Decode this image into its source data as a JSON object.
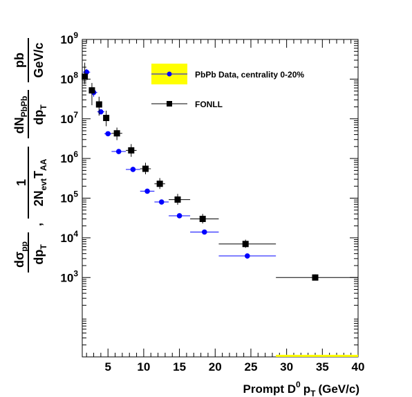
{
  "chart_data": {
    "type": "scatter",
    "xlabel": "Prompt D",
    "xlabel_sup": "0",
    "xlabel_var": "p",
    "xlabel_sub": "T",
    "xlabel_unit": "(GeV/c)",
    "x_scale": "linear",
    "y_scale": "log",
    "xlim": [
      1.4,
      40
    ],
    "ylim": [
      10,
      1000000000
    ],
    "x_ticks": [
      5,
      10,
      15,
      20,
      25,
      30,
      35,
      40
    ],
    "x_tick_labels": [
      "5",
      "10",
      "15",
      "20",
      "25",
      "30",
      "35",
      "40"
    ],
    "y_ticks": [
      1000,
      10000,
      100000,
      1000000,
      10000000,
      100000000,
      1000000000
    ],
    "y_tick_base": "10",
    "y_tick_exponents": [
      "3",
      "4",
      "5",
      "6",
      "7",
      "8",
      "9"
    ],
    "legend_position": "top-right",
    "series": [
      {
        "name": "PbPb Data, centrality 0-20%",
        "color": "#0000ff",
        "marker": "circle",
        "points": [
          {
            "x": 2.0,
            "xlo": 1.5,
            "xhi": 2.5,
            "y": 150000000,
            "ylo": 120000000,
            "yhi": 180000000
          },
          {
            "x": 3.0,
            "xlo": 2.5,
            "xhi": 3.5,
            "y": 46000000,
            "ylo": 36000000,
            "yhi": 56000000
          },
          {
            "x": 4.0,
            "xlo": 3.5,
            "xhi": 4.5,
            "y": 15000000,
            "ylo": 13000000,
            "yhi": 17000000
          },
          {
            "x": 5.0,
            "xlo": 4.5,
            "xhi": 5.5,
            "y": 4200000,
            "ylo": 3800000,
            "yhi": 4600000
          },
          {
            "x": 6.5,
            "xlo": 5.5,
            "xhi": 7.5,
            "y": 1500000,
            "ylo": 1400000,
            "yhi": 1600000
          },
          {
            "x": 8.5,
            "xlo": 7.5,
            "xhi": 9.5,
            "y": 530000,
            "ylo": 500000,
            "yhi": 560000
          },
          {
            "x": 10.5,
            "xlo": 9.5,
            "xhi": 11.5,
            "y": 150000,
            "ylo": 140000,
            "yhi": 160000
          },
          {
            "x": 12.5,
            "xlo": 11.5,
            "xhi": 13.5,
            "y": 80000,
            "ylo": 75000,
            "yhi": 85000
          },
          {
            "x": 15.0,
            "xlo": 13.5,
            "xhi": 16.5,
            "y": 36000,
            "ylo": 34000,
            "yhi": 38000
          },
          {
            "x": 18.5,
            "xlo": 16.5,
            "xhi": 20.5,
            "y": 14000,
            "ylo": 13000,
            "yhi": 15000
          },
          {
            "x": 24.5,
            "xlo": 20.5,
            "xhi": 28.5,
            "y": 3500,
            "ylo": 3000,
            "yhi": 4000
          }
        ]
      },
      {
        "name": "FONLL",
        "color": "#000000",
        "marker": "square",
        "points": [
          {
            "x": 1.75,
            "xlo": 1.5,
            "xhi": 2.0,
            "y": 115000000,
            "ylo": 75000000,
            "yhi": 260000000
          },
          {
            "x": 2.75,
            "xlo": 2.5,
            "xhi": 3.0,
            "y": 52000000,
            "ylo": 22000000,
            "yhi": 80000000
          },
          {
            "x": 3.75,
            "xlo": 3.5,
            "xhi": 4.0,
            "y": 23000000,
            "ylo": 12000000,
            "yhi": 36000000
          },
          {
            "x": 4.75,
            "xlo": 4.5,
            "xhi": 5.0,
            "y": 10500000,
            "ylo": 6500000,
            "yhi": 16000000
          },
          {
            "x": 6.25,
            "xlo": 5.5,
            "xhi": 7.0,
            "y": 4300000,
            "ylo": 2900000,
            "yhi": 6000000
          },
          {
            "x": 8.25,
            "xlo": 7.5,
            "xhi": 9.0,
            "y": 1600000,
            "ylo": 1100000,
            "yhi": 2300000
          },
          {
            "x": 10.25,
            "xlo": 9.5,
            "xhi": 11.0,
            "y": 550000,
            "ylo": 400000,
            "yhi": 780000
          },
          {
            "x": 12.25,
            "xlo": 11.5,
            "xhi": 13.0,
            "y": 230000,
            "ylo": 170000,
            "yhi": 320000
          },
          {
            "x": 14.75,
            "xlo": 13.5,
            "xhi": 16.5,
            "y": 92000,
            "ylo": 68000,
            "yhi": 128000
          },
          {
            "x": 18.25,
            "xlo": 16.5,
            "xhi": 20.5,
            "y": 30000,
            "ylo": 23000,
            "yhi": 40000
          },
          {
            "x": 24.25,
            "xlo": 20.5,
            "xhi": 28.5,
            "y": 7000,
            "ylo": 5600,
            "yhi": 9000
          },
          {
            "x": 34.0,
            "xlo": 28.5,
            "xhi": 40.0,
            "y": 1000,
            "ylo": 850,
            "yhi": 1200
          }
        ]
      }
    ],
    "systematics_band": {
      "color": "#ffff00",
      "xlo": 28.5,
      "xhi": 40.0,
      "y": 10
    }
  },
  "ylabel": {
    "frac1_num_main": "dσ",
    "frac1_num_sub": "pp",
    "frac1_den_main": "dp",
    "frac1_den_sub": "T",
    "comma": ",",
    "frac2_num": "1",
    "frac2_den_a": "2N",
    "frac2_den_a_sub": "evt",
    "frac2_den_b": "T",
    "frac2_den_b_sub": "AA",
    "frac3_num_main": "dN",
    "frac3_num_sub": "PbPb",
    "frac3_den_main": "dp",
    "frac3_den_sub": "T",
    "frac4_num": "pb",
    "frac4_den": "GeV/c"
  },
  "legend": {
    "items": [
      {
        "label": "PbPb Data, centrality 0-20%"
      },
      {
        "label": "FONLL"
      }
    ]
  },
  "colors": {
    "band": "#ffff00",
    "data": "#0000ff",
    "fonll": "#000000"
  }
}
